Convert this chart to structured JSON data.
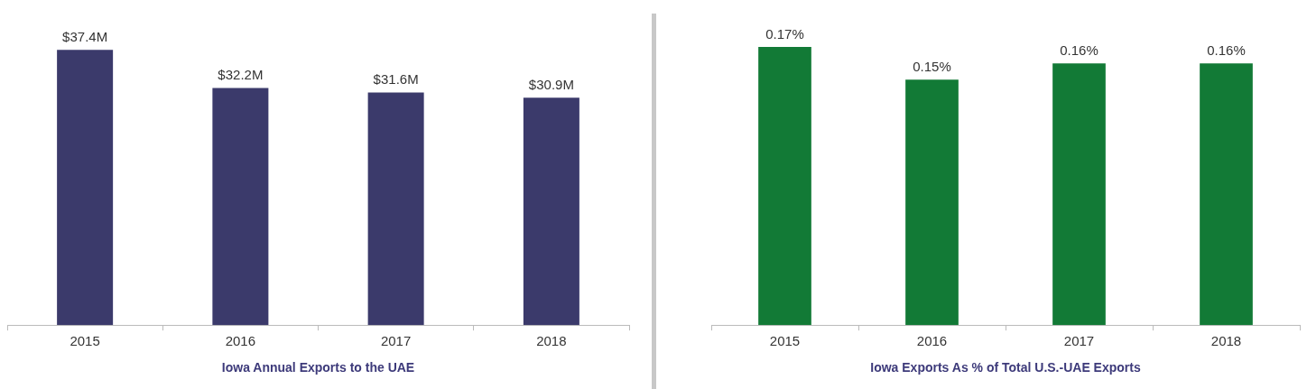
{
  "chart_data": [
    {
      "type": "bar",
      "title": "Iowa Annual Exports to the UAE",
      "categories": [
        "2015",
        "2016",
        "2017",
        "2018"
      ],
      "values": [
        37.4,
        32.2,
        31.6,
        30.9
      ],
      "value_labels": [
        "$37.4M",
        "$32.2M",
        "$31.6M",
        "$30.9M"
      ],
      "color": "#3b3a6b",
      "tick_labels": "x"
    },
    {
      "type": "bar",
      "title": "Iowa Exports As % of Total U.S.-UAE Exports",
      "categories": [
        "2015",
        "2016",
        "2017",
        "2018"
      ],
      "values": [
        0.17,
        0.15,
        0.16,
        0.16
      ],
      "value_labels": [
        "0.17%",
        "0.15%",
        "0.16%",
        "0.16%"
      ],
      "color": "#127a36",
      "tick_labels": "x"
    }
  ]
}
